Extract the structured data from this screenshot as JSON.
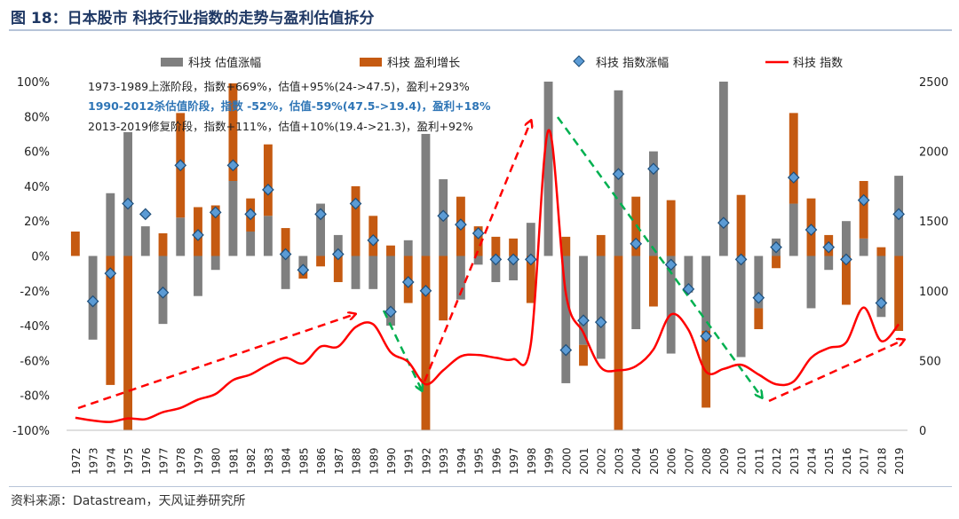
{
  "figure": {
    "title": "图 18：日本股市  科技行业指数的走势与盈利估值拆分",
    "source": "资料来源：Datastream，天风证券研究所"
  },
  "annotations": [
    {
      "text": "1973-1989上涨阶段，指数+669%，估值+95%(24->47.5)，盈利+293%",
      "color": "#222222",
      "bold": false
    },
    {
      "text": "1990-2012杀估值阶段，指数 -52%，估值-59%(47.5->19.4)，盈利+18%",
      "color": "#2e75b6",
      "bold": true
    },
    {
      "text": "2013-2019修复阶段，指数+111%，估值+10%(19.4->21.3)，盈利+92%",
      "color": "#222222",
      "bold": false
    }
  ],
  "colors": {
    "valuation": "#7f7f7f",
    "earnings": "#c55a11",
    "index_change": "#5b9bd5",
    "index_line": "#ff0000",
    "up_arrow": "#ff0000",
    "down_arrow": "#00b050"
  },
  "chart_data": {
    "type": "bar",
    "categories": [
      "1972",
      "1973",
      "1974",
      "1975",
      "1976",
      "1977",
      "1978",
      "1979",
      "1980",
      "1981",
      "1982",
      "1983",
      "1984",
      "1985",
      "1986",
      "1987",
      "1988",
      "1989",
      "1990",
      "1991",
      "1992",
      "1993",
      "1994",
      "1995",
      "1996",
      "1997",
      "1998",
      "1999",
      "2000",
      "2001",
      "2002",
      "2003",
      "2004",
      "2005",
      "2006",
      "2007",
      "2008",
      "2009",
      "2010",
      "2011",
      "2012",
      "2013",
      "2014",
      "2015",
      "2016",
      "2017",
      "2018",
      "2019"
    ],
    "left_axis": {
      "min": -100,
      "max": 100,
      "step": 20,
      "tick_labels": [
        "-100%",
        "-80%",
        "-60%",
        "-40%",
        "-20%",
        "0%",
        "20%",
        "40%",
        "60%",
        "80%",
        "100%"
      ]
    },
    "right_axis": {
      "min": 0,
      "max": 2500,
      "step": 500,
      "tick_labels": [
        "0",
        "500",
        "1000",
        "1500",
        "2000",
        "2500"
      ]
    },
    "series": [
      {
        "name": "科技 估值涨幅",
        "type": "bar",
        "axis": "left",
        "values": [
          null,
          -48,
          36,
          71,
          17,
          -39,
          22,
          -23,
          -8,
          43,
          14,
          23,
          -19,
          -7,
          30,
          12,
          -19,
          -19,
          -40,
          9,
          70,
          44,
          -25,
          -5,
          -15,
          -14,
          19,
          100,
          -73,
          -51,
          -59,
          95,
          -42,
          60,
          -56,
          -21,
          -43,
          100,
          -58,
          -30,
          10,
          30,
          -30,
          -8,
          20,
          10,
          -35,
          46
        ]
      },
      {
        "name": "科技 盈利增长",
        "type": "bar",
        "axis": "left",
        "values": [
          14,
          null,
          -74,
          -100,
          null,
          13,
          60,
          28,
          29,
          56,
          19,
          41,
          16,
          -6,
          -6,
          -15,
          40,
          23,
          6,
          -27,
          -100,
          -37,
          34,
          17,
          11,
          10,
          -27,
          null,
          11,
          -12,
          12,
          -100,
          34,
          -29,
          32,
          0,
          -44,
          null,
          35,
          -12,
          -7,
          52,
          33,
          12,
          -28,
          33,
          5,
          -43
        ]
      },
      {
        "name": "科技 指数涨幅",
        "type": "scatter",
        "axis": "left",
        "values": [
          null,
          -26,
          -10,
          30,
          24,
          -21,
          52,
          12,
          25,
          52,
          24,
          38,
          1,
          -8,
          24,
          1,
          30,
          9,
          -32,
          -15,
          -20,
          23,
          18,
          13,
          -2,
          -2,
          -2,
          null,
          -54,
          -37,
          -38,
          47,
          7,
          50,
          -5,
          -19,
          -46,
          19,
          -2,
          -24,
          5,
          45,
          15,
          5,
          -2,
          32,
          -27,
          24
        ]
      },
      {
        "name": "科技 指数",
        "type": "line",
        "axis": "right",
        "values": [
          90,
          70,
          60,
          85,
          80,
          130,
          160,
          220,
          260,
          360,
          400,
          470,
          520,
          480,
          600,
          600,
          740,
          760,
          560,
          490,
          330,
          430,
          530,
          540,
          520,
          510,
          620,
          2150,
          980,
          700,
          450,
          430,
          460,
          580,
          830,
          720,
          420,
          440,
          470,
          400,
          330,
          350,
          520,
          590,
          630,
          880,
          640,
          760
        ]
      }
    ]
  }
}
